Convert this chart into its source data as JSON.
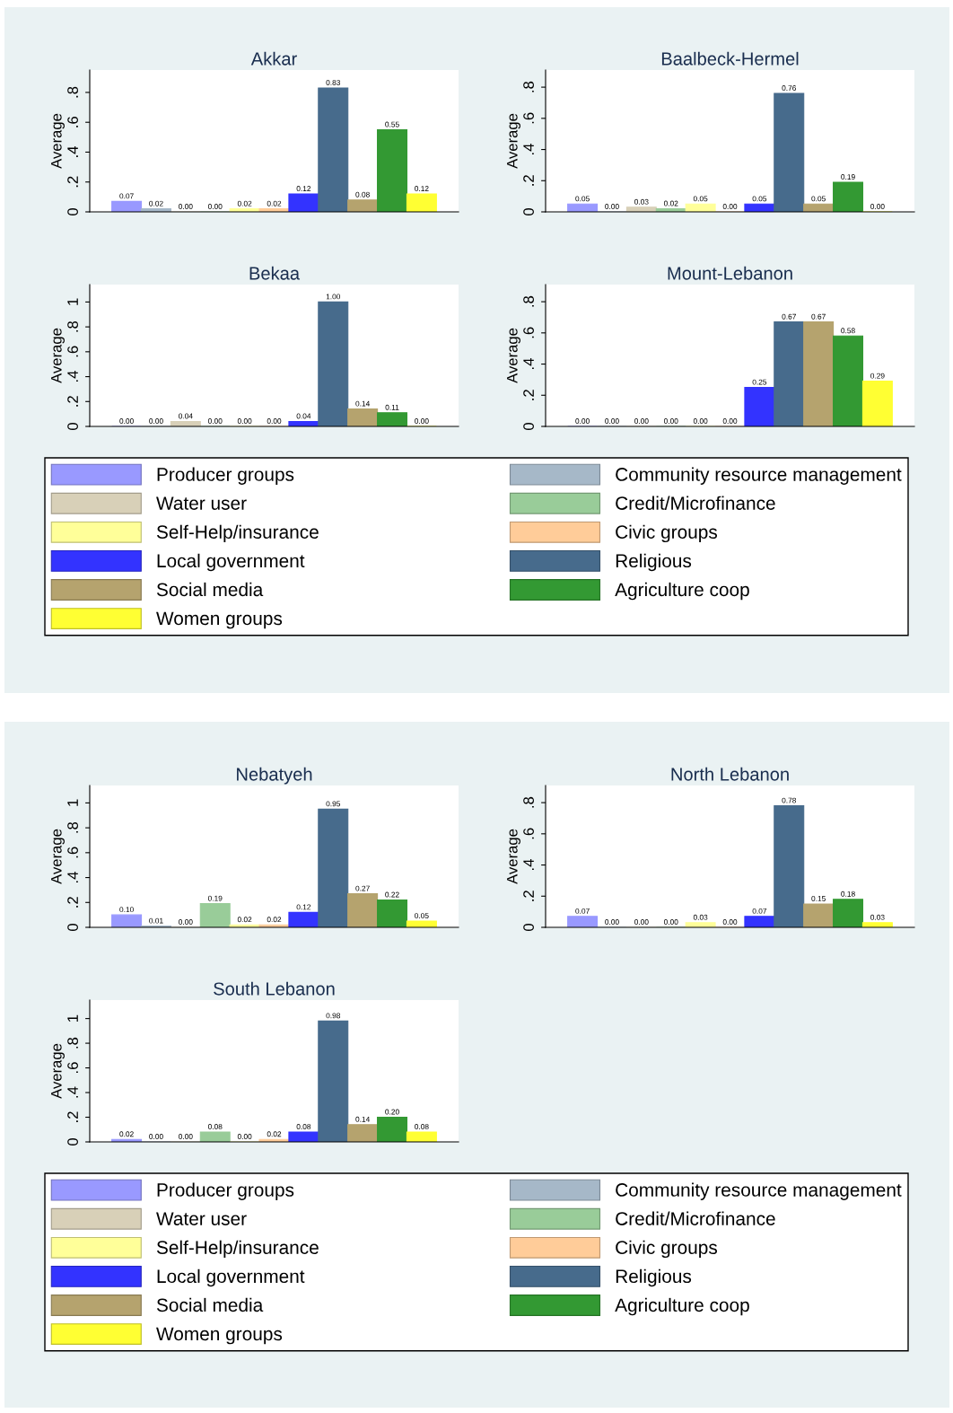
{
  "chart_data": [
    {
      "type": "bar",
      "title": "Akkar",
      "ylabel": "Average",
      "categories": [
        null
      ],
      "ylim": [
        0,
        0.95
      ],
      "yticks": [
        0,
        {
          "value": 0.2,
          "label": ".2"
        },
        {
          "value": 0.4,
          "label": ".4"
        },
        {
          "value": 0.6,
          "label": ".6"
        },
        {
          "value": 0.8,
          "label": ".8"
        }
      ],
      "grid": false,
      "series": [
        {
          "color": "#9999ff",
          "values": [
            0.07
          ],
          "value_labels": [
            "0.07"
          ]
        },
        {
          "color": "#a6b8c8",
          "values": [
            0.02
          ],
          "value_labels": [
            "0.02"
          ]
        },
        {
          "color": "#d8d0b8",
          "values": [
            0.0
          ],
          "value_labels": [
            "0.00"
          ]
        },
        {
          "color": "#99cc99",
          "values": [
            0.0
          ],
          "value_labels": [
            "0.00"
          ]
        },
        {
          "color": "#ffff99",
          "values": [
            0.02
          ],
          "value_labels": [
            "0.02"
          ]
        },
        {
          "color": "#ffcc99",
          "values": [
            0.02
          ],
          "value_labels": [
            "0.02"
          ]
        },
        {
          "color": "#3333ff",
          "values": [
            0.12
          ],
          "value_labels": [
            "0.12"
          ]
        },
        {
          "color": "#476b8c",
          "values": [
            0.83
          ],
          "value_labels": [
            "0.83"
          ]
        },
        {
          "color": "#b5a36e",
          "values": [
            0.08
          ],
          "value_labels": [
            "0.08"
          ]
        },
        {
          "color": "#339933",
          "values": [
            0.55
          ],
          "value_labels": [
            "0.55"
          ]
        },
        {
          "color": "#ffff33",
          "values": [
            0.12
          ],
          "value_labels": [
            "0.12"
          ]
        }
      ]
    },
    {
      "type": "bar",
      "title": "Baalbeck-Hermel",
      "ylabel": "Average",
      "categories": [
        null
      ],
      "ylim": [
        0,
        0.91
      ],
      "yticks": [
        0,
        {
          "value": 0.2,
          "label": ".2"
        },
        {
          "value": 0.4,
          "label": ".4"
        },
        {
          "value": 0.6,
          "label": ".6"
        },
        {
          "value": 0.8,
          "label": ".8"
        }
      ],
      "grid": false,
      "series": [
        {
          "color": "#9999ff",
          "values": [
            0.05
          ],
          "value_labels": [
            "0.05"
          ]
        },
        {
          "color": "#a6b8c8",
          "values": [
            0.0
          ],
          "value_labels": [
            "0.00"
          ]
        },
        {
          "color": "#d8d0b8",
          "values": [
            0.03
          ],
          "value_labels": [
            "0.03"
          ]
        },
        {
          "color": "#99cc99",
          "values": [
            0.02
          ],
          "value_labels": [
            "0.02"
          ]
        },
        {
          "color": "#ffff99",
          "values": [
            0.05
          ],
          "value_labels": [
            "0.05"
          ]
        },
        {
          "color": "#ffcc99",
          "values": [
            0.0
          ],
          "value_labels": [
            "0.00"
          ]
        },
        {
          "color": "#3333ff",
          "values": [
            0.05
          ],
          "value_labels": [
            "0.05"
          ]
        },
        {
          "color": "#476b8c",
          "values": [
            0.76
          ],
          "value_labels": [
            "0.76"
          ]
        },
        {
          "color": "#b5a36e",
          "values": [
            0.05
          ],
          "value_labels": [
            "0.05"
          ]
        },
        {
          "color": "#339933",
          "values": [
            0.19
          ],
          "value_labels": [
            "0.19"
          ]
        },
        {
          "color": "#ffff33",
          "values": [
            0.0
          ],
          "value_labels": [
            "0.00"
          ]
        }
      ]
    },
    {
      "type": "bar",
      "title": "Bekaa",
      "ylabel": "Average",
      "categories": [
        null
      ],
      "ylim": [
        0,
        1.14
      ],
      "yticks": [
        0,
        {
          "value": 0.2,
          "label": ".2"
        },
        {
          "value": 0.4,
          "label": ".4"
        },
        {
          "value": 0.6,
          "label": ".6"
        },
        {
          "value": 0.8,
          "label": ".8"
        },
        1
      ],
      "grid": false,
      "series": [
        {
          "color": "#9999ff",
          "values": [
            0.0
          ],
          "value_labels": [
            "0.00"
          ]
        },
        {
          "color": "#a6b8c8",
          "values": [
            0.0
          ],
          "value_labels": [
            "0.00"
          ]
        },
        {
          "color": "#d8d0b8",
          "values": [
            0.04
          ],
          "value_labels": [
            "0.04"
          ]
        },
        {
          "color": "#99cc99",
          "values": [
            0.0
          ],
          "value_labels": [
            "0.00"
          ]
        },
        {
          "color": "#ffff99",
          "values": [
            0.0
          ],
          "value_labels": [
            "0.00"
          ]
        },
        {
          "color": "#ffcc99",
          "values": [
            0.0
          ],
          "value_labels": [
            "0.00"
          ]
        },
        {
          "color": "#3333ff",
          "values": [
            0.04
          ],
          "value_labels": [
            "0.04"
          ]
        },
        {
          "color": "#476b8c",
          "values": [
            1.0
          ],
          "value_labels": [
            "1.00"
          ]
        },
        {
          "color": "#b5a36e",
          "values": [
            0.14
          ],
          "value_labels": [
            "0.14"
          ]
        },
        {
          "color": "#339933",
          "values": [
            0.11
          ],
          "value_labels": [
            "0.11"
          ]
        },
        {
          "color": "#ffff33",
          "values": [
            0.0
          ],
          "value_labels": [
            "0.00"
          ]
        }
      ]
    },
    {
      "type": "bar",
      "title": "Mount-Lebanon",
      "ylabel": "Average",
      "categories": [
        null
      ],
      "ylim": [
        0,
        0.91
      ],
      "yticks": [
        0,
        {
          "value": 0.2,
          "label": ".2"
        },
        {
          "value": 0.4,
          "label": ".4"
        },
        {
          "value": 0.6,
          "label": ".6"
        },
        {
          "value": 0.8,
          "label": ".8"
        }
      ],
      "grid": false,
      "legend": "bottom",
      "series": [
        {
          "name": "Producer groups",
          "color": "#9999ff",
          "values": [
            0.0
          ],
          "value_labels": [
            "0.00"
          ]
        },
        {
          "name": "Community resource management",
          "color": "#a6b8c8",
          "values": [
            0.0
          ],
          "value_labels": [
            "0.00"
          ]
        },
        {
          "name": "Water user",
          "color": "#d8d0b8",
          "values": [
            0.0
          ],
          "value_labels": [
            "0.00"
          ]
        },
        {
          "name": "Credit/Microfinance",
          "color": "#99cc99",
          "values": [
            0.0
          ],
          "value_labels": [
            "0.00"
          ]
        },
        {
          "name": "Self-Help/insurance",
          "color": "#ffff99",
          "values": [
            0.0
          ],
          "value_labels": [
            "0.00"
          ]
        },
        {
          "name": "Civic groups",
          "color": "#ffcc99",
          "values": [
            0.0
          ],
          "value_labels": [
            "0.00"
          ]
        },
        {
          "name": "Local government",
          "color": "#3333ff",
          "values": [
            0.25
          ],
          "value_labels": [
            "0.25"
          ]
        },
        {
          "name": "Religious",
          "color": "#476b8c",
          "values": [
            0.67
          ],
          "value_labels": [
            "0.67"
          ]
        },
        {
          "name": "Social media",
          "color": "#b5a36e",
          "values": [
            0.67
          ],
          "value_labels": [
            "0.67"
          ]
        },
        {
          "name": "Agriculture coop",
          "color": "#339933",
          "values": [
            0.58
          ],
          "value_labels": [
            "0.58"
          ]
        },
        {
          "name": "Women groups",
          "color": "#ffff33",
          "values": [
            0.29
          ],
          "value_labels": [
            "0.29"
          ]
        }
      ]
    },
    {
      "type": "bar",
      "title": "Nebatyeh",
      "ylabel": "Average",
      "categories": [
        null
      ],
      "ylim": [
        0,
        1.14
      ],
      "yticks": [
        0,
        {
          "value": 0.2,
          "label": ".2"
        },
        {
          "value": 0.4,
          "label": ".4"
        },
        {
          "value": 0.6,
          "label": ".6"
        },
        {
          "value": 0.8,
          "label": ".8"
        },
        1
      ],
      "grid": false,
      "series": [
        {
          "color": "#9999ff",
          "values": [
            0.1
          ],
          "value_labels": [
            "0.10"
          ]
        },
        {
          "color": "#a6b8c8",
          "values": [
            0.01
          ],
          "value_labels": [
            "0.01"
          ]
        },
        {
          "color": "#d8d0b8",
          "values": [
            0.0
          ],
          "value_labels": [
            "0.00"
          ]
        },
        {
          "color": "#99cc99",
          "values": [
            0.19
          ],
          "value_labels": [
            "0.19"
          ]
        },
        {
          "color": "#ffff99",
          "values": [
            0.02
          ],
          "value_labels": [
            "0.02"
          ]
        },
        {
          "color": "#ffcc99",
          "values": [
            0.02
          ],
          "value_labels": [
            "0.02"
          ]
        },
        {
          "color": "#3333ff",
          "values": [
            0.12
          ],
          "value_labels": [
            "0.12"
          ]
        },
        {
          "color": "#476b8c",
          "values": [
            0.95
          ],
          "value_labels": [
            "0.95"
          ]
        },
        {
          "color": "#b5a36e",
          "values": [
            0.27
          ],
          "value_labels": [
            "0.27"
          ]
        },
        {
          "color": "#339933",
          "values": [
            0.22
          ],
          "value_labels": [
            "0.22"
          ]
        },
        {
          "color": "#ffff33",
          "values": [
            0.05
          ],
          "value_labels": [
            "0.05"
          ]
        }
      ]
    },
    {
      "type": "bar",
      "title": "North Lebanon",
      "ylabel": "Average",
      "categories": [
        null
      ],
      "ylim": [
        0,
        0.91
      ],
      "yticks": [
        0,
        {
          "value": 0.2,
          "label": ".2"
        },
        {
          "value": 0.4,
          "label": ".4"
        },
        {
          "value": 0.6,
          "label": ".6"
        },
        {
          "value": 0.8,
          "label": ".8"
        }
      ],
      "grid": false,
      "series": [
        {
          "color": "#9999ff",
          "values": [
            0.07
          ],
          "value_labels": [
            "0.07"
          ]
        },
        {
          "color": "#a6b8c8",
          "values": [
            0.0
          ],
          "value_labels": [
            "0.00"
          ]
        },
        {
          "color": "#d8d0b8",
          "values": [
            0.0
          ],
          "value_labels": [
            "0.00"
          ]
        },
        {
          "color": "#99cc99",
          "values": [
            0.0
          ],
          "value_labels": [
            "0.00"
          ]
        },
        {
          "color": "#ffff99",
          "values": [
            0.03
          ],
          "value_labels": [
            "0.03"
          ]
        },
        {
          "color": "#ffcc99",
          "values": [
            0.0
          ],
          "value_labels": [
            "0.00"
          ]
        },
        {
          "color": "#3333ff",
          "values": [
            0.07
          ],
          "value_labels": [
            "0.07"
          ]
        },
        {
          "color": "#476b8c",
          "values": [
            0.78
          ],
          "value_labels": [
            "0.78"
          ]
        },
        {
          "color": "#b5a36e",
          "values": [
            0.15
          ],
          "value_labels": [
            "0.15"
          ]
        },
        {
          "color": "#339933",
          "values": [
            0.18
          ],
          "value_labels": [
            "0.18"
          ]
        },
        {
          "color": "#ffff33",
          "values": [
            0.03
          ],
          "value_labels": [
            "0.03"
          ]
        }
      ]
    },
    {
      "type": "bar",
      "title": "South Lebanon",
      "ylabel": "Average",
      "categories": [
        null
      ],
      "ylim": [
        0,
        1.15
      ],
      "yticks": [
        0,
        {
          "value": 0.2,
          "label": ".2"
        },
        {
          "value": 0.4,
          "label": ".4"
        },
        {
          "value": 0.6,
          "label": ".6"
        },
        {
          "value": 0.8,
          "label": ".8"
        },
        1
      ],
      "grid": false,
      "legend": "bottom",
      "series": [
        {
          "name": "Producer groups",
          "color": "#9999ff",
          "values": [
            0.02
          ],
          "value_labels": [
            "0.02"
          ]
        },
        {
          "name": "Community resource management",
          "color": "#a6b8c8",
          "values": [
            0.0
          ],
          "value_labels": [
            "0.00"
          ]
        },
        {
          "name": "Water user",
          "color": "#d8d0b8",
          "values": [
            0.0
          ],
          "value_labels": [
            "0.00"
          ]
        },
        {
          "name": "Credit/Microfinance",
          "color": "#99cc99",
          "values": [
            0.08
          ],
          "value_labels": [
            "0.08"
          ]
        },
        {
          "name": "Self-Help/insurance",
          "color": "#ffff99",
          "values": [
            0.0
          ],
          "value_labels": [
            "0.00"
          ]
        },
        {
          "name": "Civic groups",
          "color": "#ffcc99",
          "values": [
            0.02
          ],
          "value_labels": [
            "0.02"
          ]
        },
        {
          "name": "Local government",
          "color": "#3333ff",
          "values": [
            0.08
          ],
          "value_labels": [
            "0.08"
          ]
        },
        {
          "name": "Religious",
          "color": "#476b8c",
          "values": [
            0.98
          ],
          "value_labels": [
            "0.98"
          ]
        },
        {
          "name": "Social media",
          "color": "#b5a36e",
          "values": [
            0.14
          ],
          "value_labels": [
            "0.14"
          ]
        },
        {
          "name": "Agriculture coop",
          "color": "#339933",
          "values": [
            0.2
          ],
          "value_labels": [
            "0.20"
          ]
        },
        {
          "name": "Women groups",
          "color": "#ffff33",
          "values": [
            0.08
          ],
          "value_labels": [
            "0.08"
          ]
        }
      ]
    }
  ]
}
